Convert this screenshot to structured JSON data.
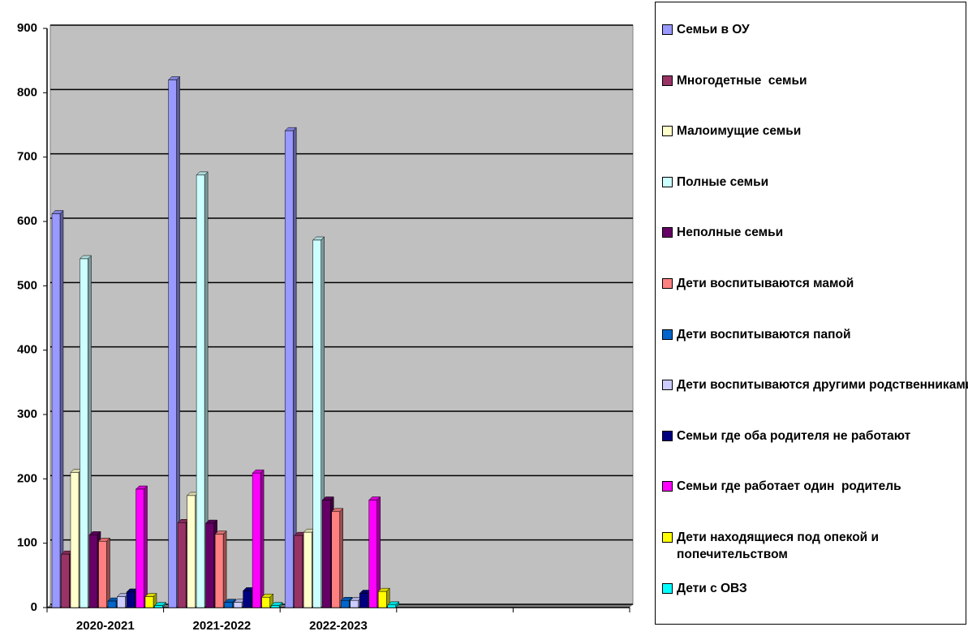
{
  "chart_data": {
    "type": "bar",
    "categories": [
      "2020-2021",
      "2021-2022",
      "2022-2023",
      null,
      null
    ],
    "series": [
      {
        "name": "Семьи в ОУ",
        "color": "#9999ff",
        "values": [
          612,
          820,
          741,
          null,
          null
        ]
      },
      {
        "name": "Многодетные  семьи",
        "color": "#993366",
        "values": [
          83,
          132,
          112,
          null,
          null
        ]
      },
      {
        "name": "Малоимущие семьи",
        "color": "#ffffcc",
        "values": [
          210,
          174,
          117,
          null,
          null
        ]
      },
      {
        "name": "Полные семьи",
        "color": "#ccffff",
        "values": [
          542,
          672,
          571,
          null,
          null
        ]
      },
      {
        "name": "Неполные семьи",
        "color": "#660066",
        "values": [
          113,
          131,
          167,
          null,
          null
        ]
      },
      {
        "name": "Дети воспитываются мамой",
        "color": "#ff8080",
        "values": [
          103,
          114,
          149,
          null,
          null
        ]
      },
      {
        "name": "Дети воспитываются папой",
        "color": "#0066cc",
        "values": [
          10,
          8,
          11,
          null,
          null
        ]
      },
      {
        "name": "Дети воспитываются другими родственниками",
        "color": "#ccccff",
        "values": [
          17,
          8,
          11,
          null,
          null
        ]
      },
      {
        "name": "Семьи где оба родителя не работают",
        "color": "#000080",
        "values": [
          24,
          26,
          22,
          null,
          null
        ]
      },
      {
        "name": "Семьи где работает один  родитель",
        "color": "#ff00ff",
        "values": [
          184,
          209,
          167,
          null,
          null
        ]
      },
      {
        "name": "Дети находящиеся под опекой и попечительством",
        "color": "#ffff00",
        "values": [
          17,
          16,
          25,
          null,
          null
        ]
      },
      {
        "name": "Дети с ОВЗ",
        "color": "#00ffff",
        "values": [
          3,
          3,
          4,
          null,
          null
        ]
      }
    ],
    "ylim": [
      0,
      900
    ],
    "yticks": [
      0,
      100,
      200,
      300,
      400,
      500,
      600,
      700,
      800,
      900
    ],
    "grid": true
  }
}
